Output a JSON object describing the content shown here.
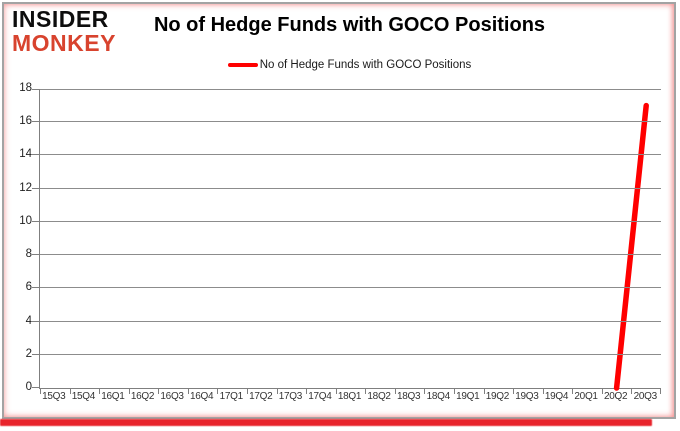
{
  "logo": {
    "line1": "INSIDER",
    "line2": "MONKEY",
    "line1_color": "#0d0d0d",
    "line2_color": "#d8432e"
  },
  "header": {
    "title": "No of Hedge Funds with GOCO Positions"
  },
  "legend": {
    "label": "No of Hedge Funds with GOCO Positions",
    "swatch_color": "#ff0000"
  },
  "colors": {
    "line": "#ff0000",
    "grid": "#8c8c8c",
    "axis": "#7f7f7f",
    "bottom_shadow": "#e8242b"
  },
  "chart_data": {
    "type": "line",
    "title": "No of Hedge Funds with GOCO Positions",
    "categories": [
      "15Q3",
      "15Q4",
      "16Q1",
      "16Q2",
      "16Q3",
      "16Q4",
      "17Q1",
      "17Q2",
      "17Q3",
      "17Q4",
      "18Q1",
      "18Q2",
      "18Q3",
      "18Q4",
      "19Q1",
      "19Q2",
      "19Q3",
      "19Q4",
      "20Q1",
      "20Q2",
      "20Q3"
    ],
    "series": [
      {
        "name": "No of Hedge Funds with GOCO Positions",
        "color": "#ff0000",
        "values": [
          null,
          null,
          null,
          null,
          null,
          null,
          null,
          null,
          null,
          null,
          null,
          null,
          null,
          null,
          null,
          null,
          null,
          null,
          null,
          0,
          17
        ]
      }
    ],
    "xlabel": "",
    "ylabel": "",
    "ylim": [
      0,
      18
    ],
    "ytick_step": 2,
    "grid": true,
    "legend_position": "top-center"
  }
}
